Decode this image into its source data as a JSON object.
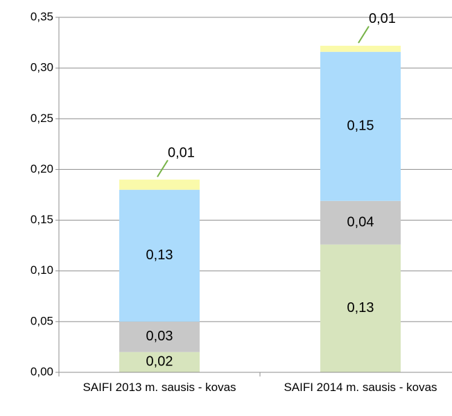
{
  "chart_data": {
    "type": "stacked_bar",
    "categories": [
      "SAIFI 2013 m. sausis - kovas",
      "SAIFI 2014 m. sausis - kovas"
    ],
    "series": [
      {
        "color": "#d7e4bd",
        "values": [
          0.02,
          0.126
        ],
        "value_labels": [
          "0,02",
          "0,13"
        ]
      },
      {
        "color": "#c8c8c8",
        "values": [
          0.03,
          0.043
        ],
        "value_labels": [
          "0,03",
          "0,04"
        ]
      },
      {
        "color": "#abdbfc",
        "values": [
          0.13,
          0.147
        ],
        "value_labels": [
          "0,13",
          "0,15"
        ]
      },
      {
        "color": "#fafaaa",
        "values": [
          0.01,
          0.006
        ],
        "value_labels": [
          "0,01",
          "0,01"
        ]
      }
    ],
    "ylim": [
      0,
      0.35
    ],
    "yticks": [
      {
        "value": 0,
        "label": "0,00"
      },
      {
        "value": 0.05,
        "label": "0,05"
      },
      {
        "value": 0.1,
        "label": "0,10"
      },
      {
        "value": 0.15,
        "label": "0,15"
      },
      {
        "value": 0.2,
        "label": "0,20"
      },
      {
        "value": 0.25,
        "label": "0,25"
      },
      {
        "value": 0.3,
        "label": "0,30"
      },
      {
        "value": 0.35,
        "label": "0,35"
      }
    ],
    "grid": true
  }
}
